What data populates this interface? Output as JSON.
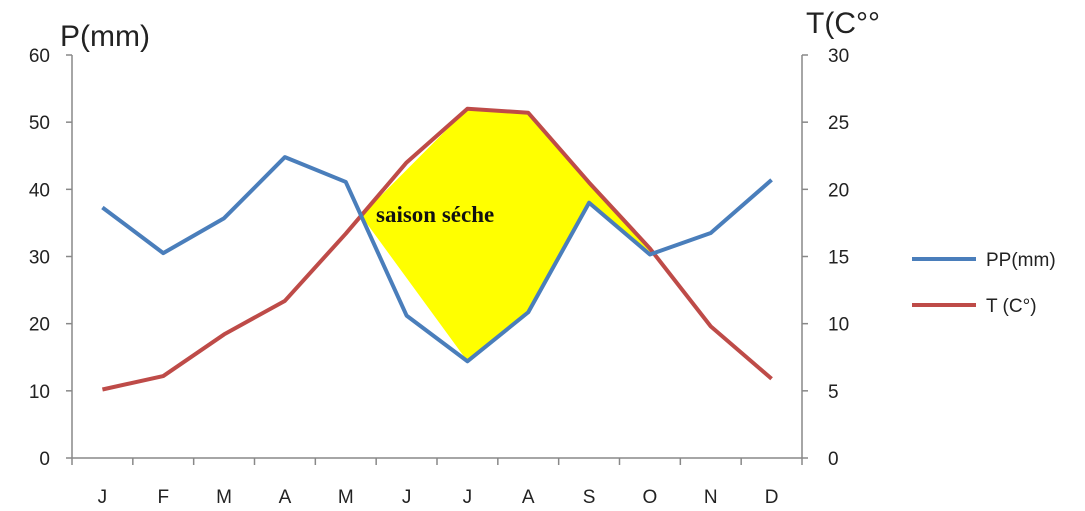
{
  "chart_data": {
    "type": "line",
    "categories": [
      "J",
      "F",
      "M",
      "A",
      "M",
      "J",
      "J",
      "A",
      "S",
      "O",
      "N",
      "D"
    ],
    "y_left": {
      "label": "P(mm)",
      "range": [
        0,
        60
      ],
      "ticks": [
        "0",
        "10",
        "20",
        "30",
        "40",
        "50",
        "60"
      ]
    },
    "y_right": {
      "label": "T(C°°",
      "range": [
        0,
        30
      ],
      "ticks": [
        "0",
        "5",
        "10",
        "15",
        "20",
        "25",
        "30"
      ]
    },
    "series": [
      {
        "name": "PP(mm)",
        "axis": "left",
        "color": "#4a7ebb",
        "values": [
          37.3,
          30.5,
          35.7,
          44.8,
          41.1,
          21.2,
          14.4,
          21.7,
          38.0,
          30.3,
          33.5,
          41.4
        ]
      },
      {
        "name": "T (C°)",
        "axis": "right",
        "color": "#be4b48",
        "values": [
          5.1,
          6.1,
          9.2,
          11.7,
          16.7,
          22.0,
          26.0,
          25.7,
          20.5,
          15.6,
          9.8,
          5.9
        ]
      }
    ],
    "shaded_region": {
      "label": "saison séche",
      "color": "#ffff00",
      "between": [
        "PP(mm)",
        "T (C°)"
      ]
    },
    "grid": false,
    "legend_position": "right"
  }
}
